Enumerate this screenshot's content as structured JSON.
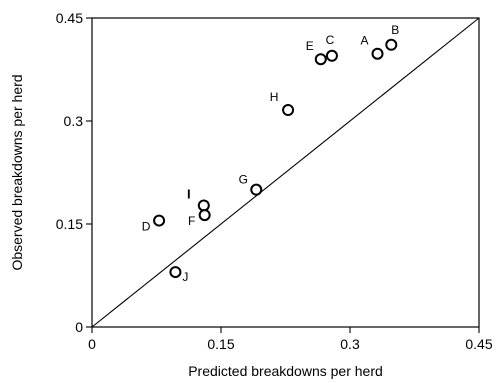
{
  "chart_data": {
    "type": "scatter",
    "title": "",
    "xlabel": "Predicted breakdowns per herd",
    "ylabel": "Observed breakdowns per herd",
    "xlim": [
      0,
      0.45
    ],
    "ylim": [
      0,
      0.45
    ],
    "xticks": [
      {
        "value": 0,
        "label": "0"
      },
      {
        "value": 0.15,
        "label": "0.15"
      },
      {
        "value": 0.3,
        "label": "0.3"
      },
      {
        "value": 0.45,
        "label": "0.45"
      }
    ],
    "yticks": [
      {
        "value": 0,
        "label": "0"
      },
      {
        "value": 0.15,
        "label": "0.15"
      },
      {
        "value": 0.3,
        "label": "0.3"
      },
      {
        "value": 0.45,
        "label": "0.45"
      }
    ],
    "reference_line": {
      "type": "identity",
      "from": [
        0,
        0
      ],
      "to": [
        0.45,
        0.45
      ]
    },
    "marker": "open-circle",
    "grid": false,
    "legend": "none",
    "points": [
      {
        "label": "A",
        "x": 0.332,
        "y": 0.398
      },
      {
        "label": "B",
        "x": 0.348,
        "y": 0.411
      },
      {
        "label": "C",
        "x": 0.279,
        "y": 0.395
      },
      {
        "label": "E",
        "x": 0.266,
        "y": 0.39
      },
      {
        "label": "H",
        "x": 0.228,
        "y": 0.316
      },
      {
        "label": "G",
        "x": 0.191,
        "y": 0.2
      },
      {
        "label": "I",
        "x": 0.13,
        "y": 0.177
      },
      {
        "label": "F",
        "x": 0.131,
        "y": 0.163
      },
      {
        "label": "D",
        "x": 0.078,
        "y": 0.155
      },
      {
        "label": "J",
        "x": 0.097,
        "y": 0.08
      }
    ]
  }
}
